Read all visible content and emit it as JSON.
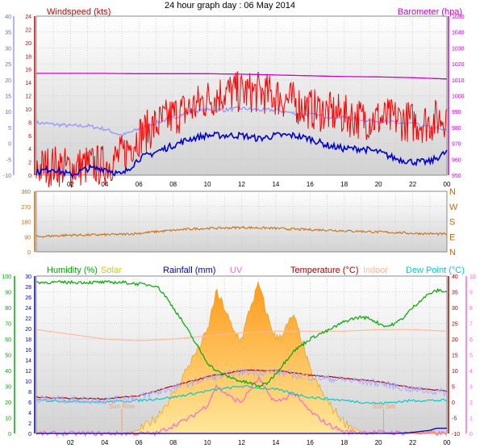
{
  "title": "24 hour graph day : 06 May 2014",
  "x_tick_labels": [
    "02",
    "04",
    "06",
    "08",
    "10",
    "12",
    "14",
    "16",
    "18",
    "20",
    "22",
    "00"
  ],
  "colors": {
    "wind_speed": "#ff0000",
    "wind_avg": "#0000cc",
    "wind_gust_fill": "#9999ff",
    "barometer": "#cc00cc",
    "wind_dir": "#cc6600",
    "humidity": "#00aa00",
    "solar": "#ffa500",
    "rainfall": "#0000aa",
    "uv": "#ff66cc",
    "temperature": "#aa0000",
    "indoor": "#ffbb99",
    "dewpoint": "#00cccc"
  },
  "chart_data": [
    {
      "type": "line",
      "labels": {
        "left_title": "Windspeed (kts)",
        "right_title": "Barometer (hpa)"
      },
      "left_axes": [
        {
          "name": "kmh",
          "ticks": [
            "40",
            "35",
            "30",
            "25",
            "20",
            "15",
            "10",
            "5",
            "0",
            "-5",
            "-10"
          ],
          "ylim": [
            -10,
            40
          ]
        },
        {
          "name": "kts",
          "ticks": [
            "24",
            "22",
            "20",
            "18",
            "16",
            "14",
            "12",
            "10",
            "8",
            "6",
            "4",
            "2",
            "0"
          ],
          "ylim": [
            0,
            24
          ]
        }
      ],
      "right_axis": {
        "ticks": [
          "1050",
          "1040",
          "1030",
          "1020",
          "1010",
          "1000",
          "990",
          "980",
          "970",
          "960",
          "950"
        ],
        "ylim": [
          950,
          1050
        ]
      },
      "series": [
        {
          "key": "wind_gust",
          "axis": "kts",
          "x": [
            0,
            1,
            2,
            3,
            4,
            5,
            6,
            7,
            8,
            9,
            10,
            11,
            12,
            13,
            14,
            15,
            16,
            17,
            18,
            19,
            20,
            21,
            22,
            23,
            24
          ],
          "values": [
            1.0,
            1.5,
            1.0,
            1.5,
            1.5,
            3.0,
            6.0,
            7.5,
            9.0,
            10.0,
            11.5,
            12.5,
            12.5,
            12.5,
            12.0,
            11.0,
            10.0,
            9.5,
            9.0,
            8.5,
            8.5,
            8.5,
            8.0,
            8.0,
            9.0
          ]
        },
        {
          "key": "wind_avg",
          "axis": "kts",
          "x": [
            0,
            1,
            2,
            3,
            4,
            5,
            6,
            7,
            8,
            9,
            10,
            11,
            12,
            13,
            14,
            15,
            16,
            17,
            18,
            19,
            20,
            21,
            22,
            23,
            24
          ],
          "values": [
            0.5,
            1.0,
            0.0,
            1.0,
            1.0,
            0.0,
            2.5,
            3.5,
            4.5,
            5.5,
            6.0,
            6.0,
            6.0,
            5.5,
            6.0,
            6.0,
            5.5,
            4.5,
            4.0,
            4.0,
            3.5,
            2.5,
            2.0,
            2.0,
            3.5
          ]
        },
        {
          "key": "wind_chill",
          "axis": "kmh",
          "x": [
            0,
            1,
            2,
            3,
            4,
            5,
            6,
            7,
            8,
            9,
            10,
            11,
            12,
            13,
            14,
            15,
            16,
            17,
            18,
            19,
            20,
            21,
            22,
            23,
            24
          ],
          "values": [
            6.5,
            6.0,
            5.5,
            5.5,
            4.5,
            2.5,
            4.5,
            6.5,
            8.0,
            10.0,
            10.5,
            10.5,
            11.0,
            10.5,
            10.5,
            9.5,
            9.0,
            8.5,
            8.0,
            7.5,
            7.0,
            6.5,
            6.0,
            5.0,
            4.0
          ]
        },
        {
          "key": "barometer",
          "axis": "hpa",
          "x": [
            0,
            2,
            4,
            6,
            8,
            10,
            12,
            14,
            16,
            18,
            20,
            22,
            24
          ],
          "values": [
            1014,
            1014,
            1014,
            1013.8,
            1013.8,
            1013.8,
            1013.5,
            1013,
            1012.5,
            1012,
            1011.8,
            1011.3,
            1010.5
          ]
        }
      ]
    },
    {
      "type": "line",
      "labels": {
        "right_letters": [
          "N",
          "W",
          "S",
          "E",
          "N"
        ]
      },
      "left_axis": {
        "ticks": [
          "360",
          "270",
          "180",
          "90",
          "0"
        ],
        "ylim": [
          0,
          360
        ]
      },
      "series": [
        {
          "key": "wind_dir",
          "x": [
            0,
            1,
            2,
            3,
            4,
            5,
            6,
            7,
            8,
            9,
            10,
            11,
            12,
            13,
            14,
            15,
            16,
            17,
            18,
            19,
            20,
            21,
            22,
            23,
            24
          ],
          "values": [
            90,
            95,
            100,
            100,
            102,
            104,
            110,
            120,
            128,
            136,
            140,
            142,
            145,
            143,
            140,
            135,
            132,
            130,
            125,
            122,
            118,
            115,
            110,
            108,
            105
          ]
        }
      ]
    },
    {
      "type": "line",
      "labels": {
        "legend": [
          "Humidity (%)",
          "Solar",
          "Rainfall (mm)",
          "UV",
          "Temperature (°C)",
          "Indoor",
          "Dew Point (°C)"
        ],
        "sun_rise": "Sun Rise",
        "sun_set": "Sun Set"
      },
      "left_axes": [
        {
          "name": "humidity",
          "ticks": [
            "100",
            "90",
            "80",
            "70",
            "60",
            "50",
            "40",
            "30",
            "20",
            "10",
            "0"
          ],
          "ylim": [
            0,
            100
          ]
        },
        {
          "name": "rain",
          "ticks": [
            "30",
            "28",
            "26",
            "24",
            "22",
            "20",
            "18",
            "16",
            "14",
            "12",
            "10",
            "8",
            "6",
            "4",
            "2",
            "0"
          ],
          "ylim": [
            0,
            30
          ]
        }
      ],
      "right_axes": [
        {
          "name": "temp",
          "ticks": [
            "40",
            "35",
            "30",
            "25",
            "20",
            "15",
            "10",
            "5",
            "0",
            "-5",
            "-10"
          ],
          "ylim": [
            -10,
            40
          ]
        },
        {
          "name": "uv",
          "ticks": [
            "10",
            "9",
            "8",
            "7",
            "6",
            "5",
            "4",
            "3",
            "2",
            "1",
            "0"
          ],
          "ylim": [
            0,
            10
          ]
        }
      ],
      "series": [
        {
          "key": "humidity",
          "x": [
            0,
            1,
            2,
            3,
            4,
            5,
            6,
            7,
            7.5,
            8,
            8.5,
            9,
            9.5,
            10,
            10.5,
            11,
            11.5,
            12,
            12.5,
            13,
            13.5,
            14,
            14.5,
            15,
            15.5,
            16,
            16.5,
            17,
            17.5,
            18,
            18.5,
            19,
            19.5,
            20,
            20.5,
            21,
            21.5,
            22,
            22.5,
            23,
            23.5,
            24
          ],
          "values": [
            96,
            96,
            96,
            96,
            96,
            96,
            95,
            94,
            88,
            80,
            72,
            63,
            54,
            45,
            40,
            37,
            35,
            33,
            32,
            30,
            32,
            38,
            45,
            52,
            56,
            60,
            63,
            65,
            68,
            71,
            73,
            74,
            73,
            70,
            68,
            70,
            74,
            80,
            85,
            89,
            91,
            90
          ]
        },
        {
          "key": "temperature",
          "x": [
            0,
            2,
            4,
            6,
            8,
            10,
            12,
            14,
            16,
            18,
            20,
            22,
            24
          ],
          "values": [
            1.5,
            1.2,
            1.0,
            2.0,
            5.0,
            8.0,
            10.0,
            10.0,
            8.5,
            7.5,
            6.5,
            4.5,
            3.5
          ]
        },
        {
          "key": "indoor",
          "x": [
            0,
            2,
            4,
            6,
            8,
            10,
            12,
            14,
            16,
            18,
            20,
            22,
            24
          ],
          "values": [
            23,
            21.5,
            20,
            19.5,
            20,
            21,
            22,
            22.5,
            22.5,
            22.5,
            23,
            23,
            22.5
          ]
        },
        {
          "key": "dewpoint",
          "x": [
            0,
            2,
            4,
            6,
            8,
            10,
            12,
            14,
            16,
            18,
            20,
            22,
            24
          ],
          "values": [
            0.5,
            0.3,
            0.0,
            0.5,
            1.5,
            3.5,
            5.0,
            4.0,
            1.5,
            0.5,
            -0.5,
            0.5,
            0.5
          ]
        },
        {
          "key": "rainfall",
          "x": [
            0,
            20,
            21,
            22,
            23,
            23.4,
            24
          ],
          "values": [
            0,
            0,
            0,
            0.2,
            0.6,
            1.0,
            1.0
          ]
        },
        {
          "key": "solar",
          "x": [
            0,
            5,
            6,
            7,
            8,
            9,
            10,
            10.5,
            11,
            11.5,
            12,
            12.5,
            13,
            13.5,
            14,
            14.5,
            15,
            15.5,
            16,
            17,
            18,
            19,
            24
          ],
          "values": [
            0,
            0,
            0.2,
            1.0,
            2.5,
            4.5,
            6.5,
            9.0,
            8.0,
            6.5,
            6.0,
            8.0,
            9.5,
            7.5,
            6.0,
            6.5,
            7.5,
            6.0,
            4.0,
            2.0,
            0.7,
            0.1,
            0
          ]
        },
        {
          "key": "uv",
          "x": [
            0,
            7,
            8,
            9,
            10,
            10.5,
            11,
            11.5,
            12,
            12.5,
            13,
            13.5,
            14,
            14.5,
            15,
            15.5,
            16,
            17,
            18,
            24
          ],
          "values": [
            0,
            0,
            0.5,
            1.0,
            1.8,
            3.0,
            2.6,
            2.2,
            2.0,
            2.8,
            3.5,
            2.6,
            2.0,
            2.2,
            2.6,
            2.0,
            1.4,
            0.6,
            0.1,
            0
          ]
        }
      ]
    }
  ]
}
